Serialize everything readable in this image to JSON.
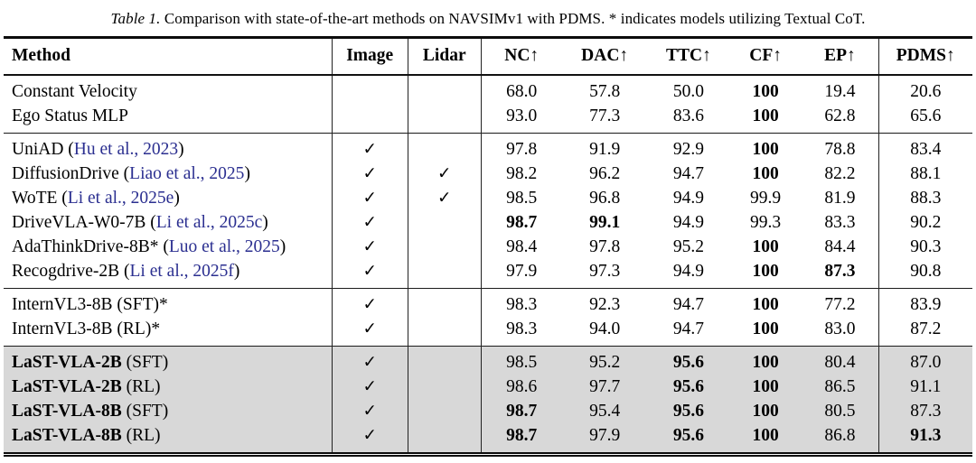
{
  "caption": {
    "label": "Table 1.",
    "text": "Comparison with state-of-the-art methods on NAVSIMv1 with PDMS. * indicates models utilizing Textual CoT."
  },
  "check_glyph": "✓",
  "cite_open": " (",
  "cite_close": ")",
  "colors": {
    "citation_blue": "#2b2f90",
    "highlight_bg": "#d8d8d8"
  },
  "table": {
    "columns": [
      {
        "key": "method",
        "label": "Method"
      },
      {
        "key": "image",
        "label": "Image"
      },
      {
        "key": "lidar",
        "label": "Lidar"
      },
      {
        "key": "nc",
        "label": "NC↑"
      },
      {
        "key": "dac",
        "label": "DAC↑"
      },
      {
        "key": "ttc",
        "label": "TTC↑"
      },
      {
        "key": "cf",
        "label": "CF↑"
      },
      {
        "key": "ep",
        "label": "EP↑"
      },
      {
        "key": "pdms",
        "label": "PDMS↑"
      }
    ],
    "sections": [
      {
        "name": "simple-baselines",
        "highlight": false,
        "rows": [
          {
            "method": {
              "bold": "",
              "plain": "Constant Velocity",
              "cite": null
            },
            "image": false,
            "lidar": false,
            "values": [
              "68.0",
              "57.8",
              "50.0",
              "100",
              "19.4",
              "20.6"
            ],
            "bold_values": [
              false,
              false,
              false,
              true,
              false,
              false
            ]
          },
          {
            "method": {
              "bold": "",
              "plain": "Ego Status MLP",
              "cite": null
            },
            "image": false,
            "lidar": false,
            "values": [
              "93.0",
              "77.3",
              "83.6",
              "100",
              "62.8",
              "65.6"
            ],
            "bold_values": [
              false,
              false,
              false,
              true,
              false,
              false
            ]
          }
        ]
      },
      {
        "name": "state-of-the-art",
        "highlight": false,
        "rows": [
          {
            "method": {
              "bold": "",
              "plain": "UniAD",
              "cite": "Hu et al., 2023"
            },
            "image": true,
            "lidar": false,
            "values": [
              "97.8",
              "91.9",
              "92.9",
              "100",
              "78.8",
              "83.4"
            ],
            "bold_values": [
              false,
              false,
              false,
              true,
              false,
              false
            ]
          },
          {
            "method": {
              "bold": "",
              "plain": "DiffusionDrive",
              "cite": "Liao et al., 2025"
            },
            "image": true,
            "lidar": true,
            "values": [
              "98.2",
              "96.2",
              "94.7",
              "100",
              "82.2",
              "88.1"
            ],
            "bold_values": [
              false,
              false,
              false,
              true,
              false,
              false
            ]
          },
          {
            "method": {
              "bold": "",
              "plain": "WoTE",
              "cite": "Li et al., 2025e"
            },
            "image": true,
            "lidar": true,
            "values": [
              "98.5",
              "96.8",
              "94.9",
              "99.9",
              "81.9",
              "88.3"
            ],
            "bold_values": [
              false,
              false,
              false,
              false,
              false,
              false
            ]
          },
          {
            "method": {
              "bold": "",
              "plain": "DriveVLA-W0-7B",
              "cite": "Li et al., 2025c"
            },
            "image": true,
            "lidar": false,
            "values": [
              "98.7",
              "99.1",
              "94.9",
              "99.3",
              "83.3",
              "90.2"
            ],
            "bold_values": [
              true,
              true,
              false,
              false,
              false,
              false
            ]
          },
          {
            "method": {
              "bold": "",
              "plain": "AdaThinkDrive-8B*",
              "cite": "Luo et al., 2025"
            },
            "image": true,
            "lidar": false,
            "values": [
              "98.4",
              "97.8",
              "95.2",
              "100",
              "84.4",
              "90.3"
            ],
            "bold_values": [
              false,
              false,
              false,
              true,
              false,
              false
            ]
          },
          {
            "method": {
              "bold": "",
              "plain": "Recogdrive-2B",
              "cite": "Li et al., 2025f"
            },
            "image": true,
            "lidar": false,
            "values": [
              "97.9",
              "97.3",
              "94.9",
              "100",
              "87.3",
              "90.8"
            ],
            "bold_values": [
              false,
              false,
              false,
              true,
              true,
              false
            ]
          }
        ]
      },
      {
        "name": "internvl-baselines",
        "highlight": false,
        "rows": [
          {
            "method": {
              "bold": "",
              "plain": "InternVL3-8B (SFT)*",
              "cite": null
            },
            "image": true,
            "lidar": false,
            "values": [
              "98.3",
              "92.3",
              "94.7",
              "100",
              "77.2",
              "83.9"
            ],
            "bold_values": [
              false,
              false,
              false,
              true,
              false,
              false
            ]
          },
          {
            "method": {
              "bold": "",
              "plain": "InternVL3-8B (RL)*",
              "cite": null
            },
            "image": true,
            "lidar": false,
            "values": [
              "98.3",
              "94.0",
              "94.7",
              "100",
              "83.0",
              "87.2"
            ],
            "bold_values": [
              false,
              false,
              false,
              true,
              false,
              false
            ]
          }
        ]
      },
      {
        "name": "ours",
        "highlight": true,
        "rows": [
          {
            "method": {
              "bold": "LaST-VLA-2B",
              "plain": " (SFT)",
              "cite": null
            },
            "image": true,
            "lidar": false,
            "values": [
              "98.5",
              "95.2",
              "95.6",
              "100",
              "80.4",
              "87.0"
            ],
            "bold_values": [
              false,
              false,
              true,
              true,
              false,
              false
            ]
          },
          {
            "method": {
              "bold": "LaST-VLA-2B",
              "plain": " (RL)",
              "cite": null
            },
            "image": true,
            "lidar": false,
            "values": [
              "98.6",
              "97.7",
              "95.6",
              "100",
              "86.5",
              "91.1"
            ],
            "bold_values": [
              false,
              false,
              true,
              true,
              false,
              false
            ]
          },
          {
            "method": {
              "bold": "LaST-VLA-8B",
              "plain": " (SFT)",
              "cite": null
            },
            "image": true,
            "lidar": false,
            "values": [
              "98.7",
              "95.4",
              "95.6",
              "100",
              "80.5",
              "87.3"
            ],
            "bold_values": [
              true,
              false,
              true,
              true,
              false,
              false
            ]
          },
          {
            "method": {
              "bold": "LaST-VLA-8B",
              "plain": " (RL)",
              "cite": null
            },
            "image": true,
            "lidar": false,
            "values": [
              "98.7",
              "97.9",
              "95.6",
              "100",
              "86.8",
              "91.3"
            ],
            "bold_values": [
              true,
              false,
              true,
              true,
              false,
              true
            ]
          }
        ]
      }
    ]
  }
}
